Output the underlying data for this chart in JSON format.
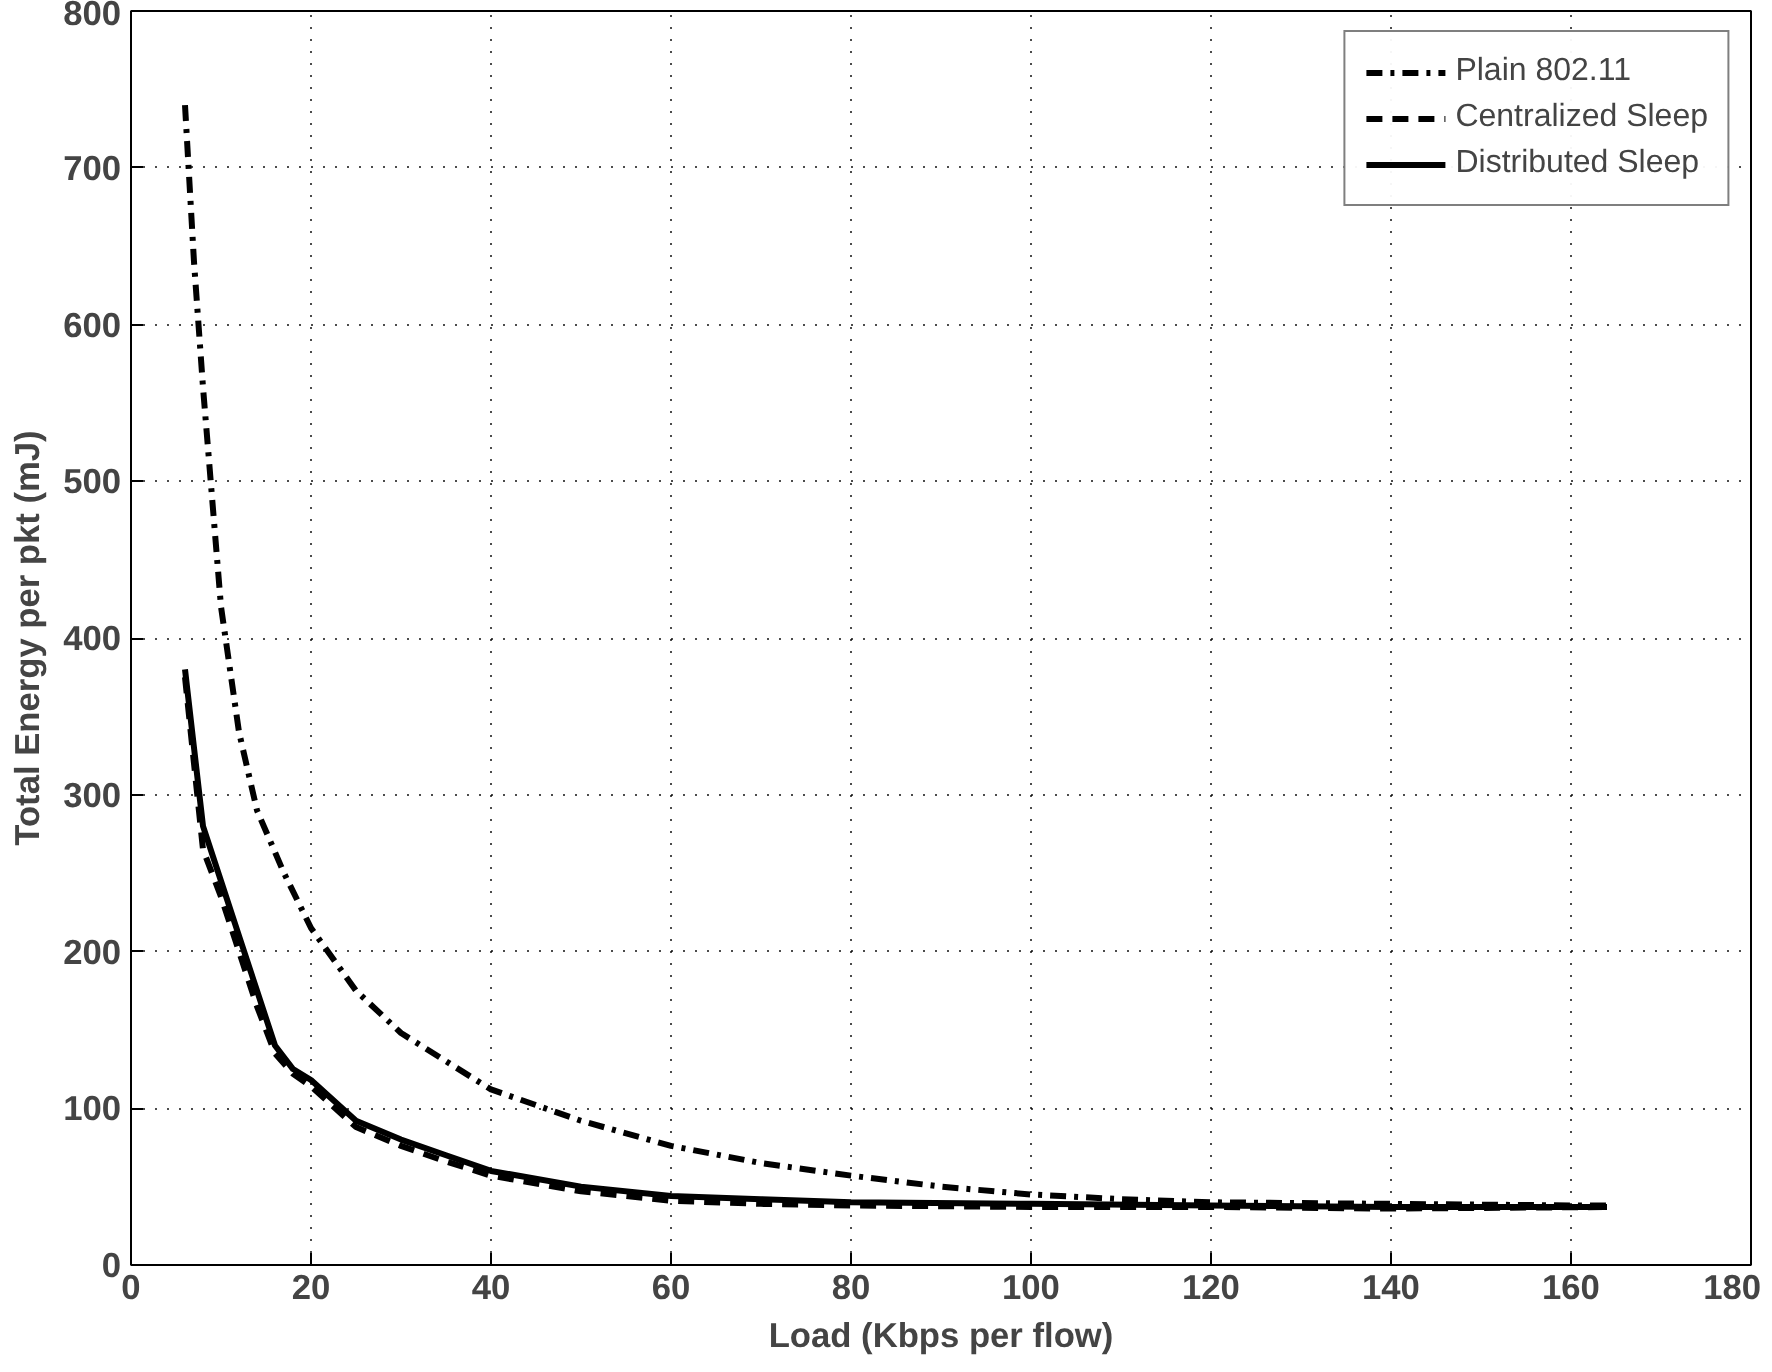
{
  "chart_data": {
    "type": "line",
    "xlabel": "Load (Kbps per flow)",
    "ylabel": "Total Energy per pkt (mJ)",
    "xlim": [
      0,
      180
    ],
    "xticks": [
      0,
      20,
      40,
      60,
      80,
      100,
      120,
      140,
      160,
      180
    ],
    "ylim": [
      0,
      800
    ],
    "yticks": [
      0,
      100,
      200,
      300,
      400,
      500,
      600,
      700,
      800
    ],
    "grid": true,
    "legend": "top right",
    "marker": "none",
    "series": [
      {
        "name": "Plain 802.11",
        "color": "#000000",
        "line_style": "dashdot",
        "x": [
          6,
          7,
          8,
          9,
          10,
          12,
          14,
          17,
          20,
          25,
          30,
          40,
          50,
          60,
          70,
          80,
          90,
          100,
          110,
          120,
          140,
          160,
          164
        ],
        "values": [
          740,
          640,
          560,
          490,
          420,
          340,
          290,
          250,
          215,
          175,
          148,
          112,
          92,
          76,
          65,
          57,
          50,
          45,
          42,
          40,
          39,
          38,
          38
        ]
      },
      {
        "name": "Centralized Sleep",
        "color": "#000000",
        "line_style": "dashed",
        "x": [
          6,
          7,
          8,
          10,
          12,
          14,
          16,
          18,
          20,
          25,
          30,
          35,
          40,
          50,
          60,
          70,
          80,
          100,
          120,
          140,
          164
        ],
        "values": [
          375,
          320,
          265,
          235,
          200,
          165,
          135,
          122,
          114,
          88,
          76,
          66,
          57,
          47,
          41,
          39,
          38,
          37,
          37,
          36,
          37
        ]
      },
      {
        "name": "Distributed Sleep",
        "color": "#000000",
        "line_style": "solid",
        "x": [
          6,
          7,
          8,
          10,
          12,
          14,
          16,
          18,
          20,
          25,
          30,
          35,
          40,
          50,
          60,
          70,
          80,
          100,
          120,
          140,
          164
        ],
        "values": [
          380,
          330,
          280,
          245,
          210,
          175,
          140,
          125,
          118,
          92,
          80,
          70,
          60,
          50,
          44,
          42,
          40,
          39,
          38,
          37,
          37
        ]
      }
    ]
  }
}
